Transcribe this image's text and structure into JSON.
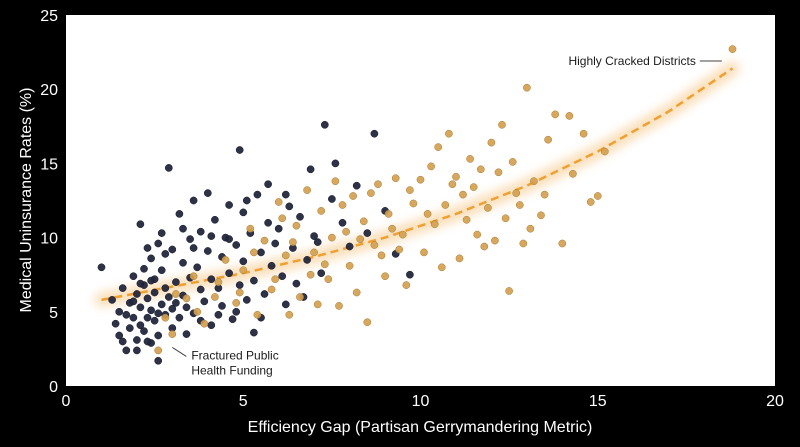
{
  "chart_data": {
    "type": "scatter",
    "title": "",
    "xlabel": "Efficiency Gap (Partisan Gerrymandering Metric)",
    "ylabel": "Medical Uninsurance Rates (%)",
    "xlim": [
      0,
      20
    ],
    "ylim": [
      0,
      25
    ],
    "xticks": [
      "0",
      "5",
      "10",
      "15",
      "20"
    ],
    "yticks": [
      "0",
      "5",
      "10",
      "15",
      "20",
      "25"
    ],
    "grid": false,
    "legend": "none",
    "colors": {
      "background": "#ffffff",
      "page_background": "#000000",
      "series_dark": "#23273d",
      "series_gold": "#d39f4e",
      "trend": "#f0a030"
    },
    "series": [
      {
        "color": "#23273d",
        "points": [
          [
            1.0,
            8.0
          ],
          [
            1.3,
            5.8
          ],
          [
            1.4,
            4.2
          ],
          [
            1.5,
            5.0
          ],
          [
            1.5,
            3.4
          ],
          [
            1.6,
            6.6
          ],
          [
            1.7,
            2.4
          ],
          [
            1.7,
            4.8
          ],
          [
            1.8,
            5.6
          ],
          [
            1.8,
            3.9
          ],
          [
            1.9,
            7.4
          ],
          [
            1.9,
            4.6
          ],
          [
            2.0,
            6.2
          ],
          [
            2.0,
            3.1
          ],
          [
            2.0,
            2.4
          ],
          [
            2.1,
            10.9
          ],
          [
            2.1,
            5.3
          ],
          [
            2.1,
            4.1
          ],
          [
            2.2,
            7.9
          ],
          [
            2.2,
            6.8
          ],
          [
            2.2,
            3.7
          ],
          [
            2.3,
            9.3
          ],
          [
            2.3,
            5.9
          ],
          [
            2.3,
            4.6
          ],
          [
            2.4,
            8.6
          ],
          [
            2.4,
            5.1
          ],
          [
            2.4,
            2.9
          ],
          [
            2.5,
            7.2
          ],
          [
            2.5,
            4.4
          ],
          [
            2.5,
            6.3
          ],
          [
            2.6,
            9.6
          ],
          [
            2.6,
            3.4
          ],
          [
            2.6,
            1.7
          ],
          [
            2.7,
            5.5
          ],
          [
            2.7,
            7.8
          ],
          [
            2.8,
            4.8
          ],
          [
            2.8,
            8.9
          ],
          [
            2.9,
            6.0
          ],
          [
            2.9,
            14.7
          ],
          [
            3.0,
            5.2
          ],
          [
            3.0,
            9.2
          ],
          [
            3.0,
            3.9
          ],
          [
            3.1,
            7.0
          ],
          [
            3.2,
            11.6
          ],
          [
            3.2,
            4.6
          ],
          [
            3.3,
            8.3
          ],
          [
            3.3,
            6.1
          ],
          [
            3.4,
            5.3
          ],
          [
            3.5,
            9.9
          ],
          [
            3.5,
            7.3
          ],
          [
            3.6,
            12.5
          ],
          [
            3.6,
            4.9
          ],
          [
            3.7,
            8.0
          ],
          [
            3.8,
            6.5
          ],
          [
            3.8,
            10.4
          ],
          [
            3.9,
            5.7
          ],
          [
            4.0,
            9.1
          ],
          [
            4.0,
            13.0
          ],
          [
            4.1,
            7.2
          ],
          [
            4.1,
            4.1
          ],
          [
            4.2,
            11.2
          ],
          [
            4.3,
            6.6
          ],
          [
            4.4,
            8.7
          ],
          [
            4.4,
            5.4
          ],
          [
            4.5,
            10.0
          ],
          [
            4.6,
            12.2
          ],
          [
            4.6,
            7.6
          ],
          [
            4.7,
            4.5
          ],
          [
            4.8,
            9.5
          ],
          [
            4.9,
            6.8
          ],
          [
            4.9,
            15.9
          ],
          [
            5.0,
            8.4
          ],
          [
            5.0,
            11.7
          ],
          [
            5.1,
            5.8
          ],
          [
            5.2,
            10.3
          ],
          [
            5.3,
            7.1
          ],
          [
            5.3,
            3.6
          ],
          [
            5.4,
            12.9
          ],
          [
            5.5,
            9.0
          ],
          [
            5.6,
            6.2
          ],
          [
            5.7,
            11.0
          ],
          [
            5.7,
            13.6
          ],
          [
            5.8,
            8.1
          ],
          [
            6.0,
            10.6
          ],
          [
            6.1,
            7.4
          ],
          [
            6.2,
            5.5
          ],
          [
            6.3,
            12.1
          ],
          [
            6.4,
            9.3
          ],
          [
            6.5,
            6.9
          ],
          [
            6.6,
            11.4
          ],
          [
            6.8,
            8.5
          ],
          [
            6.9,
            14.6
          ],
          [
            7.0,
            10.1
          ],
          [
            7.2,
            7.6
          ],
          [
            7.3,
            17.6
          ],
          [
            7.5,
            12.6
          ],
          [
            7.8,
            11.0
          ],
          [
            8.0,
            9.4
          ],
          [
            8.2,
            13.5
          ],
          [
            8.5,
            10.3
          ],
          [
            8.7,
            17.0
          ],
          [
            9.0,
            11.8
          ],
          [
            9.3,
            8.9
          ],
          [
            9.7,
            7.5
          ],
          [
            1.6,
            3.0
          ],
          [
            1.9,
            5.7
          ],
          [
            2.1,
            6.9
          ],
          [
            2.3,
            3.0
          ],
          [
            2.4,
            7.1
          ],
          [
            2.6,
            4.9
          ],
          [
            2.7,
            10.3
          ],
          [
            2.8,
            6.6
          ],
          [
            3.1,
            5.6
          ],
          [
            3.3,
            10.6
          ],
          [
            3.4,
            3.5
          ],
          [
            3.6,
            9.3
          ],
          [
            3.8,
            4.4
          ],
          [
            4.1,
            10.1
          ],
          [
            4.3,
            4.8
          ],
          [
            4.6,
            9.9
          ],
          [
            4.8,
            5.0
          ],
          [
            5.1,
            12.5
          ],
          [
            5.5,
            4.6
          ],
          [
            5.9,
            9.6
          ],
          [
            6.2,
            12.9
          ],
          [
            6.7,
            6.0
          ],
          [
            7.1,
            9.7
          ],
          [
            7.6,
            15.0
          ]
        ]
      },
      {
        "color": "#d39f4e",
        "points": [
          [
            2.6,
            2.4
          ],
          [
            2.8,
            4.6
          ],
          [
            3.0,
            3.5
          ],
          [
            3.4,
            5.9
          ],
          [
            3.6,
            7.4
          ],
          [
            3.9,
            4.2
          ],
          [
            4.2,
            6.0
          ],
          [
            4.5,
            8.5
          ],
          [
            4.8,
            5.6
          ],
          [
            5.0,
            7.8
          ],
          [
            5.2,
            10.6
          ],
          [
            5.4,
            4.8
          ],
          [
            5.6,
            9.8
          ],
          [
            5.8,
            6.5
          ],
          [
            6.0,
            12.4
          ],
          [
            6.2,
            8.8
          ],
          [
            6.3,
            4.8
          ],
          [
            6.5,
            10.8
          ],
          [
            6.6,
            6.0
          ],
          [
            6.8,
            13.2
          ],
          [
            7.0,
            9.0
          ],
          [
            7.1,
            5.5
          ],
          [
            7.2,
            11.8
          ],
          [
            7.4,
            7.2
          ],
          [
            7.6,
            13.8
          ],
          [
            7.7,
            5.4
          ],
          [
            7.9,
            10.4
          ],
          [
            8.0,
            8.1
          ],
          [
            8.1,
            12.8
          ],
          [
            8.2,
            6.3
          ],
          [
            8.4,
            11.1
          ],
          [
            8.5,
            4.3
          ],
          [
            8.7,
            9.5
          ],
          [
            8.8,
            13.6
          ],
          [
            9.0,
            7.4
          ],
          [
            9.1,
            11.6
          ],
          [
            9.3,
            14.0
          ],
          [
            9.5,
            10.2
          ],
          [
            9.6,
            6.8
          ],
          [
            9.8,
            12.3
          ],
          [
            10.0,
            13.9
          ],
          [
            10.1,
            9.0
          ],
          [
            10.3,
            14.8
          ],
          [
            10.4,
            10.9
          ],
          [
            10.5,
            16.1
          ],
          [
            10.7,
            12.2
          ],
          [
            10.8,
            17.0
          ],
          [
            11.0,
            14.1
          ],
          [
            11.1,
            8.6
          ],
          [
            11.2,
            12.9
          ],
          [
            11.4,
            15.3
          ],
          [
            11.6,
            10.2
          ],
          [
            11.7,
            14.6
          ],
          [
            11.9,
            12.0
          ],
          [
            12.0,
            16.4
          ],
          [
            12.1,
            9.8
          ],
          [
            12.3,
            17.6
          ],
          [
            12.4,
            11.3
          ],
          [
            12.5,
            6.4
          ],
          [
            12.6,
            15.1
          ],
          [
            12.8,
            12.2
          ],
          [
            12.9,
            9.6
          ],
          [
            13.0,
            20.1
          ],
          [
            13.2,
            13.8
          ],
          [
            13.4,
            11.5
          ],
          [
            13.6,
            16.6
          ],
          [
            13.8,
            18.3
          ],
          [
            14.0,
            9.6
          ],
          [
            14.3,
            14.3
          ],
          [
            14.6,
            17.0
          ],
          [
            15.0,
            12.8
          ],
          [
            15.2,
            15.8
          ],
          [
            18.8,
            22.7
          ],
          [
            3.1,
            6.2
          ],
          [
            3.7,
            5.0
          ],
          [
            4.3,
            7.0
          ],
          [
            4.9,
            6.3
          ],
          [
            5.3,
            9.0
          ],
          [
            5.9,
            7.2
          ],
          [
            6.1,
            11.3
          ],
          [
            6.4,
            9.7
          ],
          [
            6.9,
            7.5
          ],
          [
            7.3,
            8.2
          ],
          [
            7.5,
            10.0
          ],
          [
            7.8,
            12.2
          ],
          [
            8.3,
            9.9
          ],
          [
            8.6,
            13.0
          ],
          [
            8.9,
            8.8
          ],
          [
            9.2,
            10.6
          ],
          [
            9.4,
            9.2
          ],
          [
            9.7,
            13.2
          ],
          [
            10.2,
            11.6
          ],
          [
            10.6,
            8.0
          ],
          [
            10.9,
            13.6
          ],
          [
            11.3,
            11.2
          ],
          [
            11.5,
            13.4
          ],
          [
            11.8,
            9.4
          ],
          [
            12.2,
            14.4
          ],
          [
            12.7,
            13.0
          ],
          [
            13.1,
            10.6
          ],
          [
            13.5,
            12.9
          ],
          [
            14.2,
            18.2
          ],
          [
            14.8,
            12.4
          ]
        ]
      }
    ],
    "trend": {
      "style": "dashed-glow",
      "points": [
        [
          1.0,
          5.8
        ],
        [
          3.0,
          6.7
        ],
        [
          5.0,
          7.6
        ],
        [
          7.0,
          8.7
        ],
        [
          9.0,
          10.0
        ],
        [
          11.0,
          11.6
        ],
        [
          13.0,
          13.5
        ],
        [
          15.0,
          15.8
        ],
        [
          17.0,
          18.5
        ],
        [
          18.8,
          21.4
        ]
      ]
    },
    "annotations": [
      {
        "text": "Highly Cracked Districts",
        "point": [
          18.5,
          21.9
        ],
        "placement": "left"
      },
      {
        "text": [
          "Fractured Public",
          "Health Funding"
        ],
        "point": [
          3.0,
          2.6
        ],
        "placement": "right-below"
      }
    ]
  }
}
